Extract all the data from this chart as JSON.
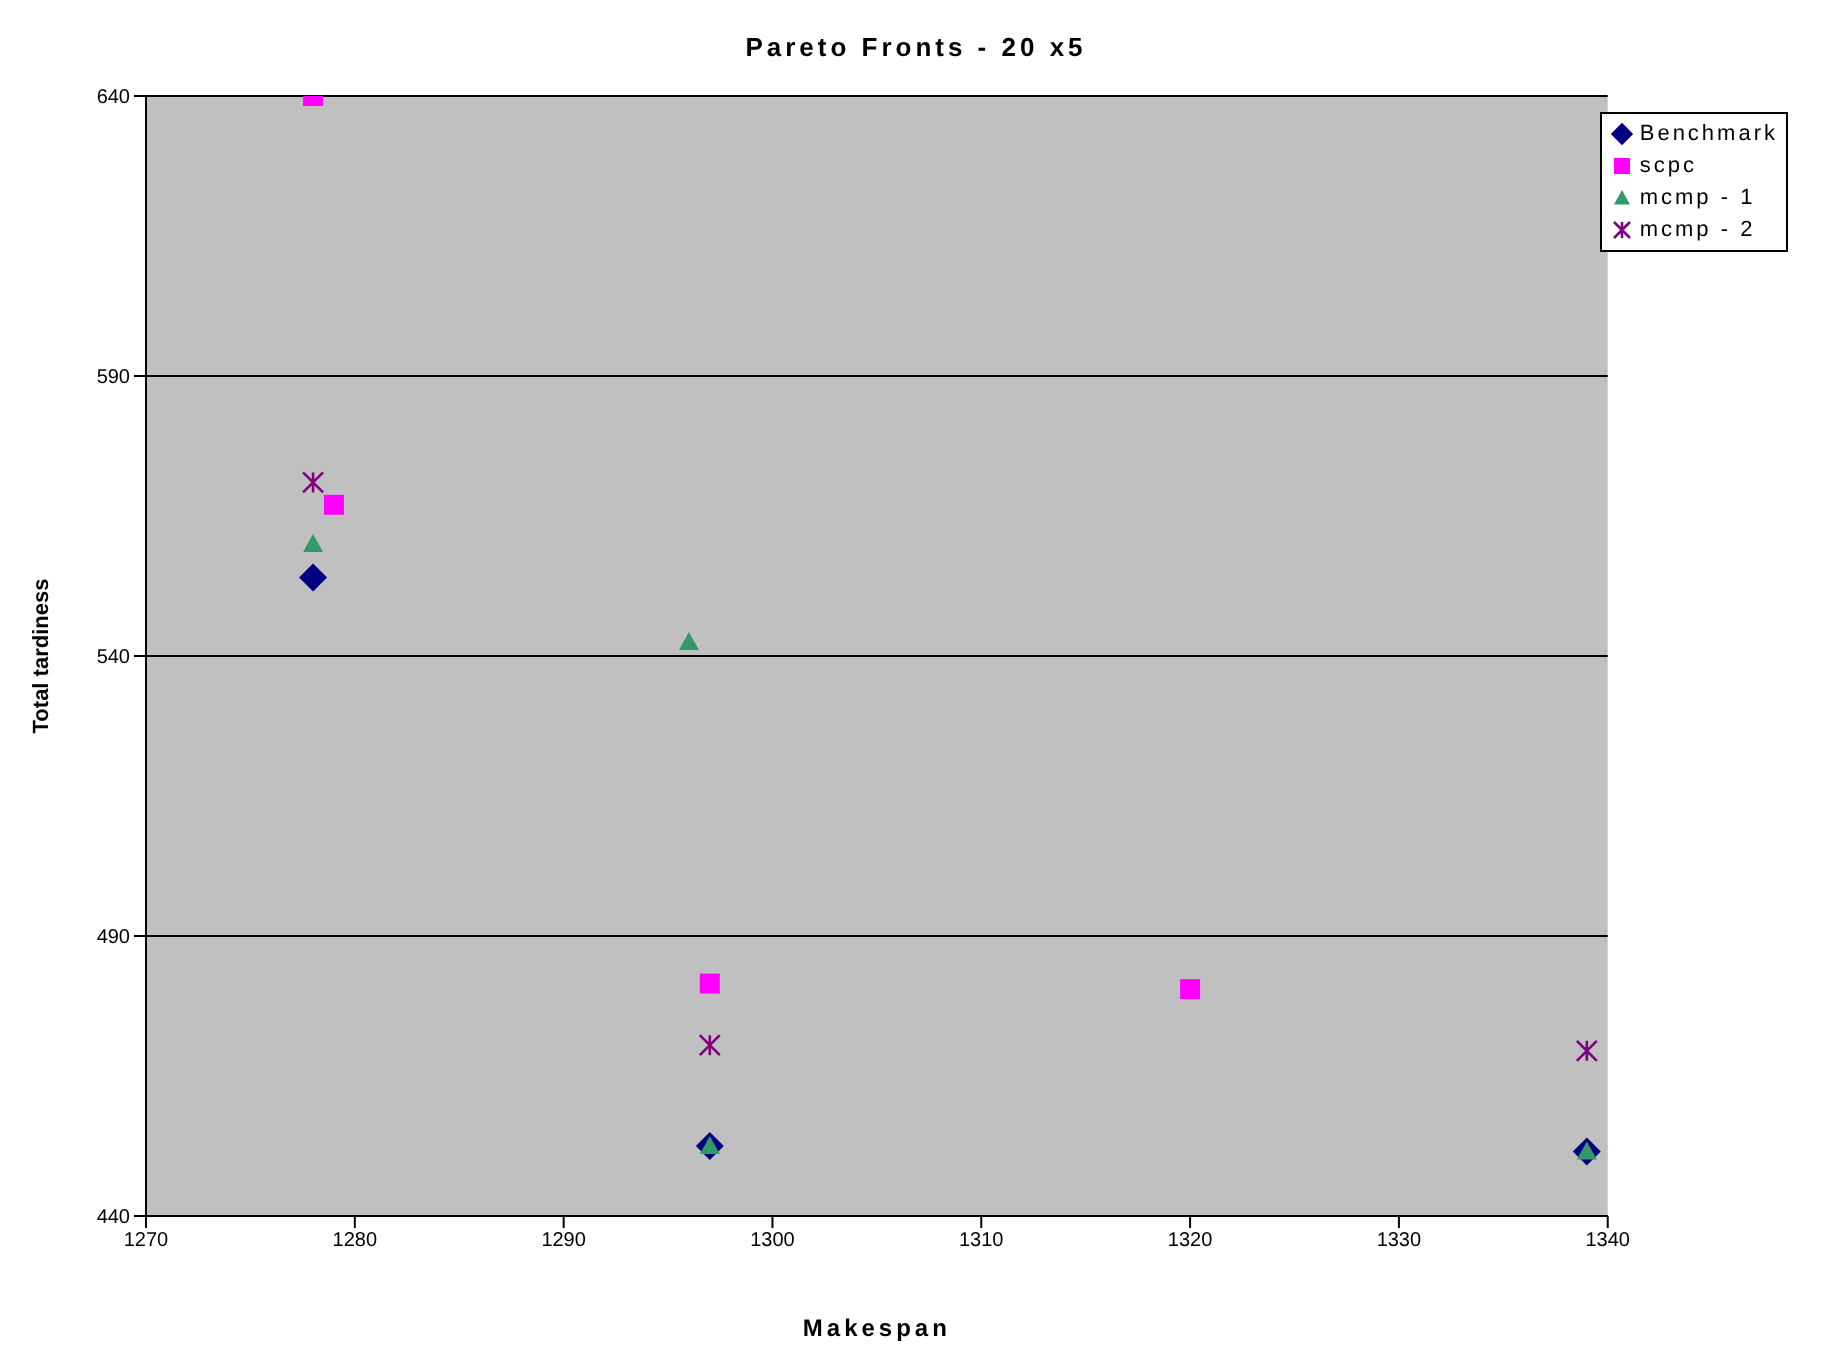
{
  "chart_data": {
    "type": "scatter",
    "title": "Pareto Fronts - 20 x5",
    "xlabel": "Makespan",
    "ylabel": "Total tardiness",
    "xlim": [
      1270,
      1340
    ],
    "xticks": [
      1270,
      1280,
      1290,
      1300,
      1310,
      1320,
      1330,
      1340
    ],
    "ylim": [
      440,
      640
    ],
    "yticks": [
      440,
      490,
      540,
      590,
      640
    ],
    "grid": "y",
    "legend": "top right",
    "series": [
      {
        "name": "Benchmark",
        "color": "#000080",
        "marker": "diamond",
        "x": [
          1278,
          1297,
          1339
        ],
        "values": [
          554,
          452.5,
          451.5
        ]
      },
      {
        "name": "scpc",
        "color": "#ff00ff",
        "marker": "square",
        "x": [
          1278,
          1279,
          1297,
          1320
        ],
        "values": [
          640,
          567,
          481.5,
          480.5
        ]
      },
      {
        "name": "mcmp - 1",
        "color": "#339966",
        "marker": "triangle",
        "x": [
          1278,
          1296,
          1297,
          1339
        ],
        "values": [
          560,
          542.5,
          452.5,
          451.5
        ]
      },
      {
        "name": "mcmp - 2",
        "color": "#800080",
        "marker": "cross",
        "x": [
          1278,
          1297,
          1339
        ],
        "values": [
          571,
          470.5,
          469.5
        ]
      }
    ]
  }
}
